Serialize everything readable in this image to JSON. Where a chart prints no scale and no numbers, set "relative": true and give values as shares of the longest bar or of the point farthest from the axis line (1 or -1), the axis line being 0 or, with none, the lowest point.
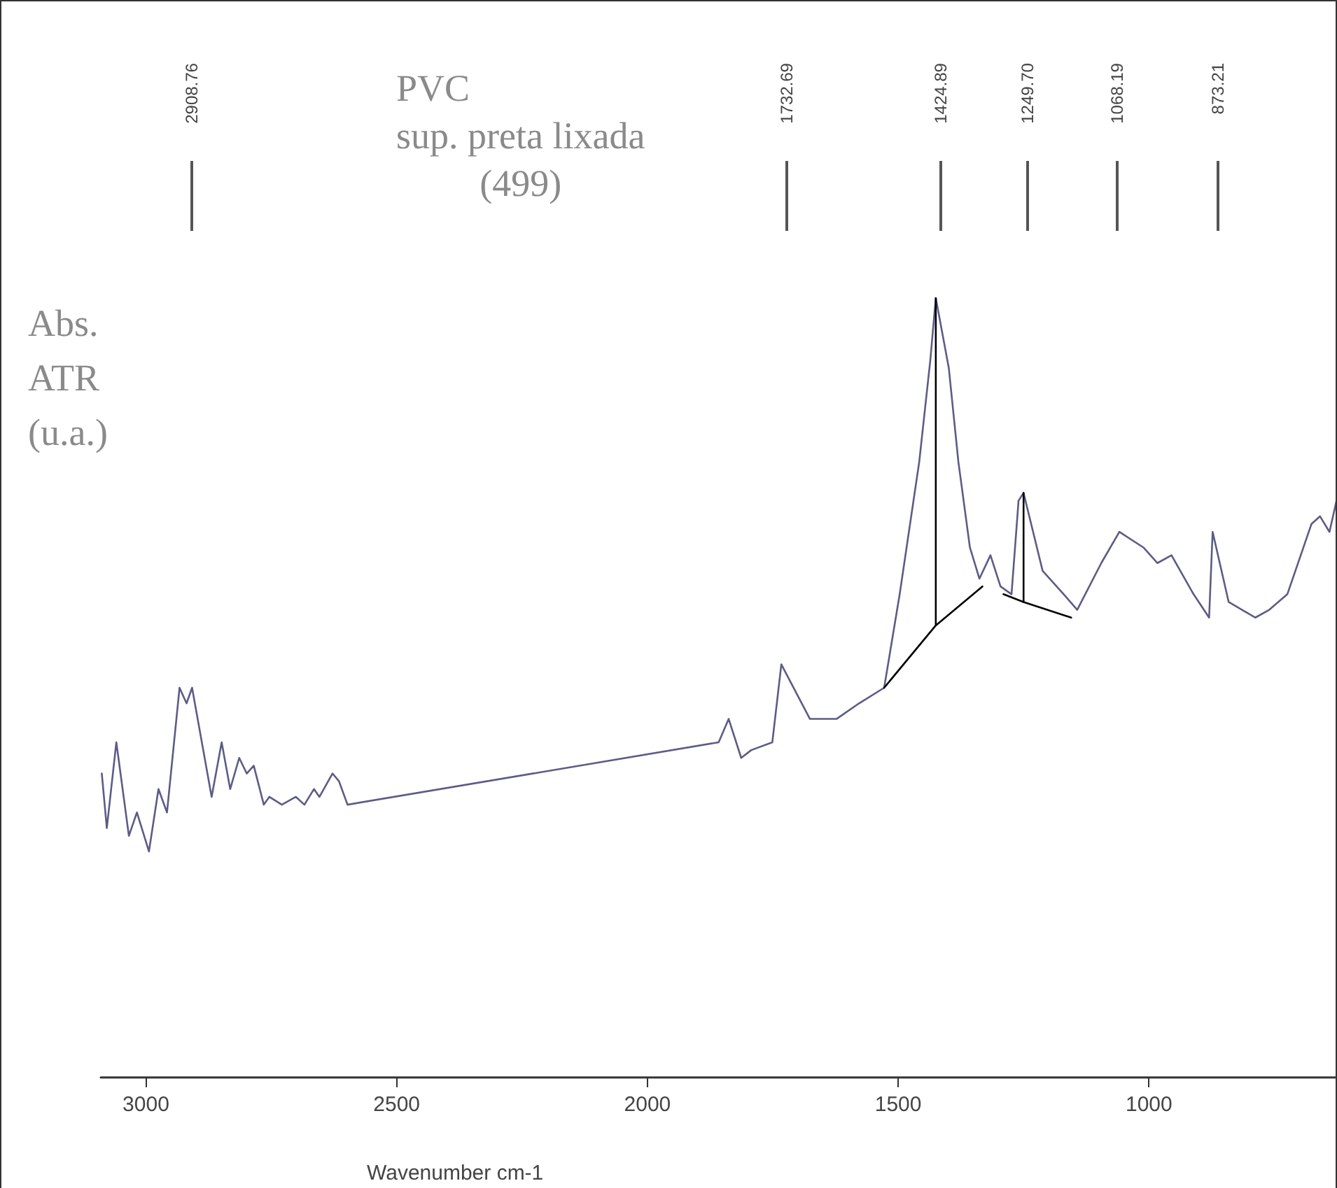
{
  "chart_data": {
    "type": "line",
    "title": "PVC\nsup. preta lixada\n(499)",
    "xlabel": "Wavenumber cm-1",
    "ylabel": "Abs.\nATR\n(u.a.)",
    "relative": true,
    "xlim": [
      3090,
      625
    ],
    "xticks": [
      3000,
      2500,
      2000,
      1500,
      1000
    ],
    "grid": false,
    "marker": "none",
    "line_style": "solid",
    "series": [
      {
        "color": "#5c5c86",
        "x": [
          3088,
          3078,
          3059,
          3034,
          3018,
          2994,
          2975,
          2958,
          2933,
          2919,
          2908,
          2869,
          2849,
          2832,
          2814,
          2799,
          2785,
          2765,
          2754,
          2729,
          2701,
          2684,
          2665,
          2654,
          2628,
          2615,
          2598,
          1858,
          1838,
          1813,
          1793,
          1751,
          1733,
          1676,
          1623,
          1578,
          1528,
          1497,
          1458,
          1436,
          1425,
          1399,
          1380,
          1357,
          1338,
          1316,
          1296,
          1274,
          1260,
          1250,
          1212,
          1170,
          1143,
          1095,
          1059,
          1011,
          983,
          955,
          911,
          880,
          873,
          841,
          788,
          760,
          724,
          676,
          659,
          640,
          626
        ],
        "values": [
          0.39,
          0.32,
          0.43,
          0.31,
          0.34,
          0.29,
          0.37,
          0.34,
          0.5,
          0.48,
          0.5,
          0.36,
          0.43,
          0.37,
          0.41,
          0.39,
          0.4,
          0.35,
          0.36,
          0.35,
          0.36,
          0.35,
          0.37,
          0.36,
          0.39,
          0.38,
          0.35,
          0.43,
          0.46,
          0.41,
          0.42,
          0.43,
          0.53,
          0.46,
          0.46,
          0.48,
          0.5,
          0.62,
          0.79,
          0.92,
          1,
          0.91,
          0.79,
          0.68,
          0.64,
          0.67,
          0.63,
          0.62,
          0.74,
          0.75,
          0.65,
          0.62,
          0.6,
          0.66,
          0.7,
          0.68,
          0.66,
          0.67,
          0.62,
          0.59,
          0.7,
          0.61,
          0.59,
          0.6,
          0.62,
          0.71,
          0.72,
          0.7,
          0.74
        ]
      },
      {
        "color": "#000000",
        "x": [
          1528,
          1425,
          1332
        ],
        "values": [
          0.5,
          0.58,
          0.63
        ]
      },
      {
        "color": "#000000",
        "x": [
          1425,
          1425
        ],
        "values": [
          0.58,
          1
        ]
      },
      {
        "color": "#000000",
        "x": [
          1290,
          1250,
          1155
        ],
        "values": [
          0.62,
          0.61,
          0.59
        ]
      },
      {
        "color": "#000000",
        "x": [
          1250,
          1250
        ],
        "values": [
          0.61,
          0.75
        ]
      }
    ],
    "annotations": [
      "2908.76",
      "1732.69",
      "1424.89",
      "1249.70",
      "1068.19",
      "873.21"
    ]
  }
}
